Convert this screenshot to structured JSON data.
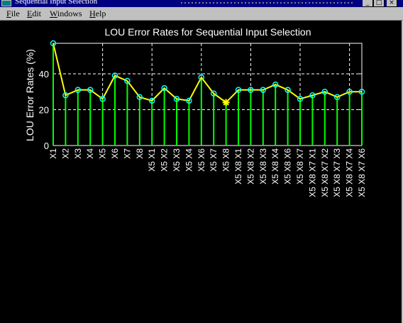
{
  "window": {
    "title": "Sequential Input Selection",
    "buttons": {
      "minimize": "_",
      "maximize": "□",
      "close": "×"
    }
  },
  "menu": [
    {
      "label": "File",
      "hotkey": "F",
      "rest": "ile"
    },
    {
      "label": "Edit",
      "hotkey": "E",
      "rest": "dit"
    },
    {
      "label": "Windows",
      "hotkey": "W",
      "rest": "indows"
    },
    {
      "label": "Help",
      "hotkey": "H",
      "rest": "elp"
    }
  ],
  "colors": {
    "background": "#000000",
    "axes": "#ffffff",
    "stems": "#00ff00",
    "line": "#ffff00",
    "markers": "#00ffff",
    "best_marker": "#ffff00"
  },
  "chart_data": {
    "type": "line",
    "title": "LOU Error Rates for Sequential Input Selection",
    "xlabel": "",
    "ylabel": "LOU Error Rates (%)",
    "ylim": [
      0,
      57
    ],
    "yticks": [
      0,
      20,
      40
    ],
    "grid": true,
    "categories": [
      "X1",
      "X2",
      "X3",
      "X4",
      "X5",
      "X6",
      "X7",
      "X8",
      "X5 X1",
      "X5 X2",
      "X5 X3",
      "X5 X4",
      "X5 X6",
      "X5 X7",
      "X5 X8",
      "X5 X8 X1",
      "X5 X8 X2",
      "X5 X8 X3",
      "X5 X8 X4",
      "X5 X8 X6",
      "X5 X8 X7",
      "X5 X8 X7 X1",
      "X5 X8 X7 X2",
      "X5 X8 X7 X3",
      "X5 X8 X7 X4",
      "X5 X8 X7 X6"
    ],
    "values": [
      57,
      28,
      31,
      31,
      26,
      39,
      36,
      27,
      25,
      32,
      26,
      25,
      38,
      29,
      24,
      31,
      31,
      31,
      34,
      31,
      26,
      28,
      30,
      27,
      30,
      30
    ],
    "best_index": 14
  }
}
